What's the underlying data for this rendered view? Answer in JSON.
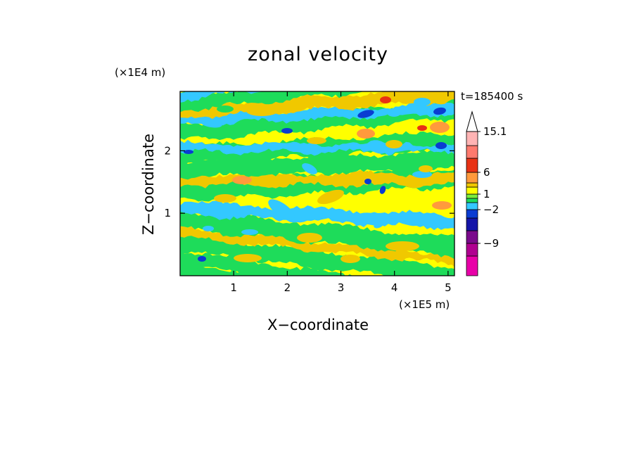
{
  "chart_data": {
    "type": "heatmap",
    "title": "zonal velocity",
    "xlabel": "X−coordinate",
    "ylabel": "Z−coordinate",
    "x_unit": "(×1E5 m)",
    "y_unit": "(×1E4 m)",
    "time_label": "t=185400 s",
    "xlim": [
      0,
      5.12
    ],
    "ylim": [
      0,
      2.95
    ],
    "x_ticks": [
      1,
      2,
      3,
      4,
      5
    ],
    "x_tick_labels": [
      "1",
      "2",
      "3",
      "4",
      "5"
    ],
    "y_ticks": [
      1,
      2
    ],
    "y_tick_labels": [
      "1",
      "2"
    ],
    "colorbar": {
      "levels": [
        -15,
        -12,
        -9,
        -6,
        -4,
        -2,
        -1,
        0,
        1,
        2,
        4,
        6,
        9,
        12,
        15.1
      ],
      "tick_labels": [
        {
          "value": -9,
          "label": "−9"
        },
        {
          "value": -2,
          "label": "−2"
        },
        {
          "value": 1,
          "label": "1"
        },
        {
          "value": 6,
          "label": "6"
        },
        {
          "value": 15.1,
          "label": "15.1"
        }
      ],
      "colors": [
        "#e800a8",
        "#b00090",
        "#7a0a8c",
        "#1414a8",
        "#0a3cd2",
        "#33c8ff",
        "#1edc5a",
        "#7aec3c",
        "#ffff00",
        "#f0c800",
        "#ff9a3c",
        "#e83214",
        "#ff7a6e",
        "#ffb4b4"
      ],
      "extend": "max"
    }
  }
}
